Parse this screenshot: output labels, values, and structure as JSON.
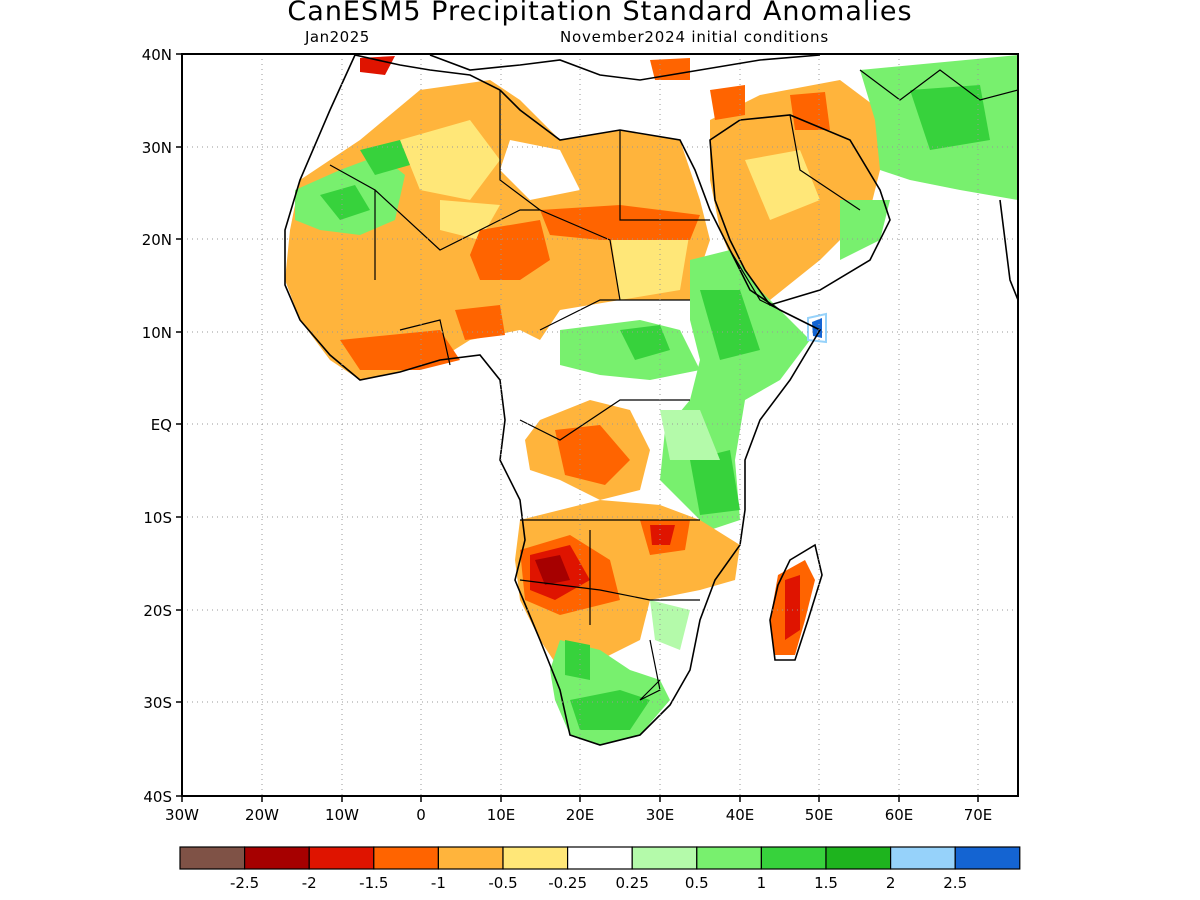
{
  "title": "CanESM5 Precipitation Standard Anomalies",
  "subtitle_left": "Jan2025",
  "subtitle_right": "November2024 initial conditions",
  "lat_labels": [
    "40N",
    "30N",
    "20N",
    "10N",
    "EQ",
    "10S",
    "20S",
    "30S",
    "40S"
  ],
  "lon_labels": [
    "30W",
    "20W",
    "10W",
    "0",
    "10E",
    "20E",
    "30E",
    "40E",
    "50E",
    "60E",
    "70E"
  ],
  "colorbar": {
    "colors": [
      "#7f5246",
      "#a60000",
      "#df1400",
      "#ff6400",
      "#ffb43c",
      "#ffe778",
      "#ffffff",
      "#b4faaa",
      "#78f06e",
      "#37d23c",
      "#1eb41e",
      "#96d2fa",
      "#1464d2"
    ],
    "tick_labels": [
      "-2.5",
      "-2",
      "-1.5",
      "-1",
      "-0.5",
      "-0.25",
      "0.25",
      "0.5",
      "1",
      "1.5",
      "2",
      "2.5"
    ]
  }
}
